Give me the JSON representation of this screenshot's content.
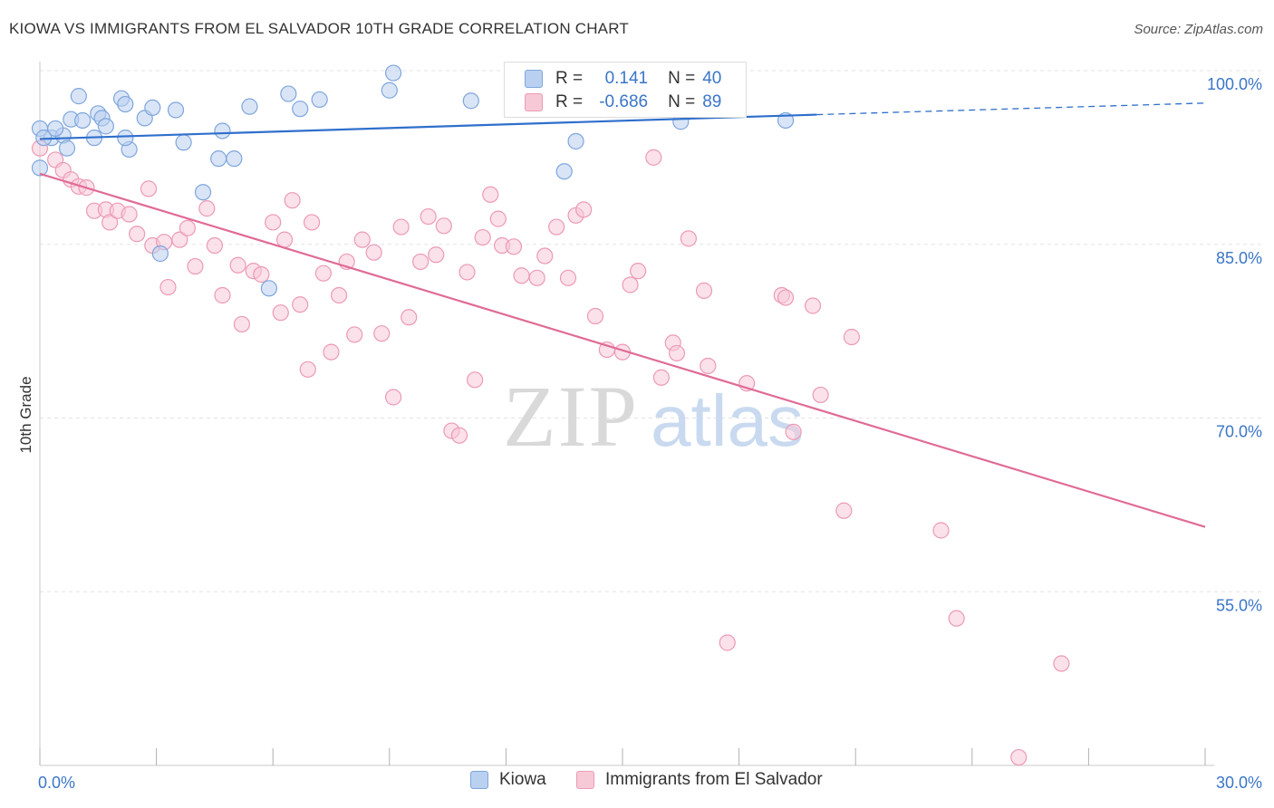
{
  "title": "KIOWA VS IMMIGRANTS FROM EL SALVADOR 10TH GRADE CORRELATION CHART",
  "source": "Source: ZipAtlas.com",
  "watermark": {
    "zip": "ZIP",
    "atlas": "atlas"
  },
  "legend_top": {
    "r_label": "R =",
    "n_label": "N =",
    "rows": [
      {
        "r": "0.141",
        "n": "40"
      },
      {
        "r": "-0.686",
        "n": "89"
      }
    ]
  },
  "colors": {
    "kiowa_fill": "#b9d0f0",
    "kiowa_stroke": "#7ea6dc",
    "kiowa_line": "#2f6fcc",
    "salvador_fill": "#f7c9d7",
    "salvador_stroke": "#ec9ab5",
    "salvador_line": "#e06b96",
    "axis_text": "#3a76c7",
    "grid": "#e3e3e3"
  },
  "chart_data": {
    "type": "scatter",
    "title": "KIOWA VS IMMIGRANTS FROM EL SALVADOR 10TH GRADE CORRELATION CHART",
    "xlabel": "",
    "ylabel": "10th Grade",
    "xlim": [
      0,
      30
    ],
    "ylim": [
      40,
      100
    ],
    "x_tick_labels": [
      "0.0%",
      "30.0%"
    ],
    "y_ticks": [
      55,
      70,
      85,
      100
    ],
    "y_tick_labels": [
      "55.0%",
      "70.0%",
      "85.0%",
      "100.0%"
    ],
    "grid": true,
    "legend_position": "bottom",
    "series": [
      {
        "name": "Kiowa",
        "R": 0.141,
        "N": 40,
        "trend": {
          "x0": 0.0,
          "y0": 94.1,
          "x1": 20.0,
          "y1": 96.2,
          "dashed_to_x": 30.0,
          "dashed_to_y": 97.2
        },
        "points": [
          [
            0.3,
            94.2
          ],
          [
            0.0,
            91.6
          ],
          [
            0.6,
            94.4
          ],
          [
            0.7,
            93.3
          ],
          [
            0.4,
            95.0
          ],
          [
            0.8,
            95.8
          ],
          [
            1.0,
            97.8
          ],
          [
            1.1,
            95.7
          ],
          [
            1.4,
            94.2
          ],
          [
            1.5,
            96.3
          ],
          [
            1.6,
            95.9
          ],
          [
            1.7,
            95.2
          ],
          [
            2.1,
            97.6
          ],
          [
            2.2,
            97.1
          ],
          [
            2.3,
            93.2
          ],
          [
            2.2,
            94.2
          ],
          [
            2.7,
            95.9
          ],
          [
            2.9,
            96.8
          ],
          [
            3.5,
            96.6
          ],
          [
            3.7,
            93.8
          ],
          [
            4.2,
            89.5
          ],
          [
            4.6,
            92.4
          ],
          [
            4.7,
            94.8
          ],
          [
            5.0,
            92.4
          ],
          [
            5.4,
            96.9
          ],
          [
            5.9,
            81.2
          ],
          [
            6.4,
            98.0
          ],
          [
            6.7,
            96.7
          ],
          [
            7.2,
            97.5
          ],
          [
            9.0,
            98.3
          ],
          [
            9.1,
            99.8
          ],
          [
            11.1,
            97.4
          ],
          [
            12.8,
            99.5
          ],
          [
            13.5,
            91.3
          ],
          [
            13.8,
            93.9
          ],
          [
            16.5,
            95.6
          ],
          [
            19.2,
            95.7
          ],
          [
            0.0,
            95.0
          ],
          [
            0.1,
            94.2
          ],
          [
            3.1,
            84.2
          ]
        ]
      },
      {
        "name": "Immigrants from El Salvador",
        "R": -0.686,
        "N": 89,
        "trend": {
          "x0": 0.0,
          "y0": 91.1,
          "x1": 30.0,
          "y1": 60.6
        },
        "points": [
          [
            0.0,
            93.3
          ],
          [
            0.4,
            92.3
          ],
          [
            0.6,
            91.4
          ],
          [
            0.8,
            90.6
          ],
          [
            1.0,
            90.0
          ],
          [
            1.2,
            89.9
          ],
          [
            1.4,
            87.9
          ],
          [
            1.7,
            88.0
          ],
          [
            1.8,
            86.9
          ],
          [
            2.0,
            87.9
          ],
          [
            2.3,
            87.6
          ],
          [
            2.5,
            85.9
          ],
          [
            2.8,
            89.8
          ],
          [
            2.9,
            84.9
          ],
          [
            3.2,
            85.2
          ],
          [
            3.3,
            81.3
          ],
          [
            3.6,
            85.4
          ],
          [
            3.8,
            86.4
          ],
          [
            4.0,
            83.1
          ],
          [
            4.3,
            88.1
          ],
          [
            4.5,
            84.9
          ],
          [
            4.7,
            80.6
          ],
          [
            5.1,
            83.2
          ],
          [
            5.2,
            78.1
          ],
          [
            5.5,
            82.7
          ],
          [
            5.7,
            82.4
          ],
          [
            6.0,
            86.9
          ],
          [
            6.2,
            79.1
          ],
          [
            6.3,
            85.4
          ],
          [
            6.5,
            88.8
          ],
          [
            6.7,
            79.8
          ],
          [
            6.9,
            74.2
          ],
          [
            7.0,
            86.9
          ],
          [
            7.3,
            82.5
          ],
          [
            7.5,
            75.7
          ],
          [
            7.7,
            80.6
          ],
          [
            7.9,
            83.5
          ],
          [
            8.1,
            77.2
          ],
          [
            8.3,
            85.4
          ],
          [
            8.6,
            84.3
          ],
          [
            8.8,
            77.3
          ],
          [
            9.1,
            71.8
          ],
          [
            9.3,
            86.5
          ],
          [
            9.5,
            78.7
          ],
          [
            9.8,
            83.5
          ],
          [
            10.0,
            87.4
          ],
          [
            10.2,
            84.1
          ],
          [
            10.4,
            86.6
          ],
          [
            10.6,
            68.9
          ],
          [
            10.8,
            68.5
          ],
          [
            11.0,
            82.6
          ],
          [
            11.2,
            73.3
          ],
          [
            11.4,
            85.6
          ],
          [
            11.6,
            89.3
          ],
          [
            11.8,
            87.2
          ],
          [
            11.9,
            84.9
          ],
          [
            12.2,
            84.8
          ],
          [
            12.4,
            82.3
          ],
          [
            12.8,
            82.1
          ],
          [
            13.0,
            84.0
          ],
          [
            13.3,
            86.5
          ],
          [
            13.6,
            82.1
          ],
          [
            13.8,
            87.5
          ],
          [
            14.0,
            88.0
          ],
          [
            14.3,
            78.8
          ],
          [
            14.6,
            75.9
          ],
          [
            15.0,
            75.7
          ],
          [
            15.2,
            81.5
          ],
          [
            15.4,
            82.7
          ],
          [
            15.8,
            92.5
          ],
          [
            16.0,
            73.5
          ],
          [
            16.3,
            76.5
          ],
          [
            16.4,
            75.6
          ],
          [
            16.7,
            85.5
          ],
          [
            17.1,
            81.0
          ],
          [
            17.2,
            74.5
          ],
          [
            18.2,
            73.0
          ],
          [
            19.1,
            80.6
          ],
          [
            19.2,
            80.4
          ],
          [
            19.4,
            68.8
          ],
          [
            19.9,
            79.7
          ],
          [
            20.1,
            72.0
          ],
          [
            20.7,
            62.0
          ],
          [
            20.9,
            77.0
          ],
          [
            17.7,
            50.6
          ],
          [
            23.2,
            60.3
          ],
          [
            23.6,
            52.7
          ],
          [
            25.2,
            40.7
          ],
          [
            26.3,
            48.8
          ]
        ]
      }
    ]
  },
  "bottom_legend": [
    {
      "label": "Kiowa"
    },
    {
      "label": "Immigrants from El Salvador"
    }
  ]
}
